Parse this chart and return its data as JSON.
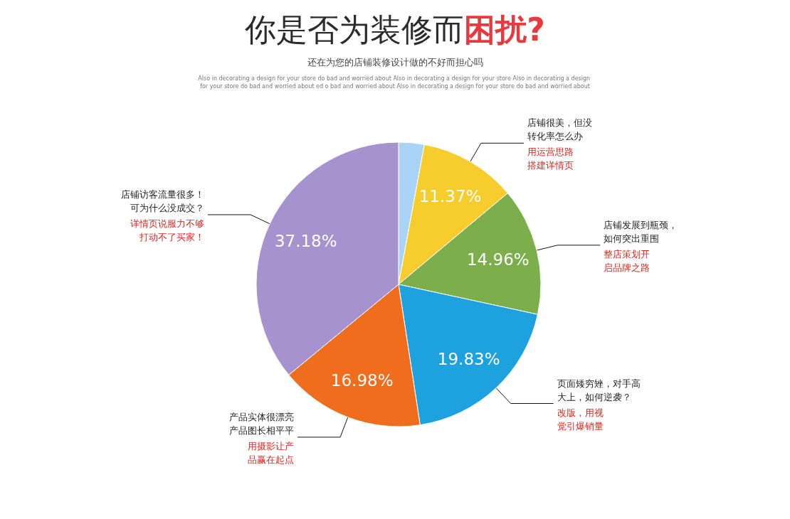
{
  "chart_data": {
    "type": "pie",
    "title": "你是否为装修而困扰?",
    "subtitle": "还在为您的店铺装修设计做的不好而担心吗",
    "categories": [
      null,
      "店铺很美，但没转化率怎么办",
      "店铺发展到瓶颈，如何突出重围",
      "页面矮穷矬，对手高大上，如何逆袭？",
      "产品实体很漂亮产品图长相平平",
      "店铺访客流量很多！可为什么没成交？"
    ],
    "values": [
      3,
      11.37,
      14.96,
      19.83,
      16.98,
      37.18
    ],
    "colors": [
      "#a9d3f7",
      "#f7cd2e",
      "#7cae4b",
      "#1ea1df",
      "#f06d1d",
      "#a692cf"
    ],
    "value_labels": [
      null,
      "11.37%",
      "14.96%",
      "19.83%",
      "16.98%",
      "37.18%"
    ],
    "annotations": [
      "Also in decorating a design for your store do bad and worried about Also in decorating a design for your store Also in decorating a design for your store do bad and worried about ed o bad and worried about Also in decorating a design for your store do bad and worried about",
      "用运营思路搭建详情页",
      "整店策划开启品牌之路",
      "改版，用视觉引爆销量",
      "用摄影让产品赢在起点",
      "详情页说服力不够打动不了买家！"
    ]
  }
}
